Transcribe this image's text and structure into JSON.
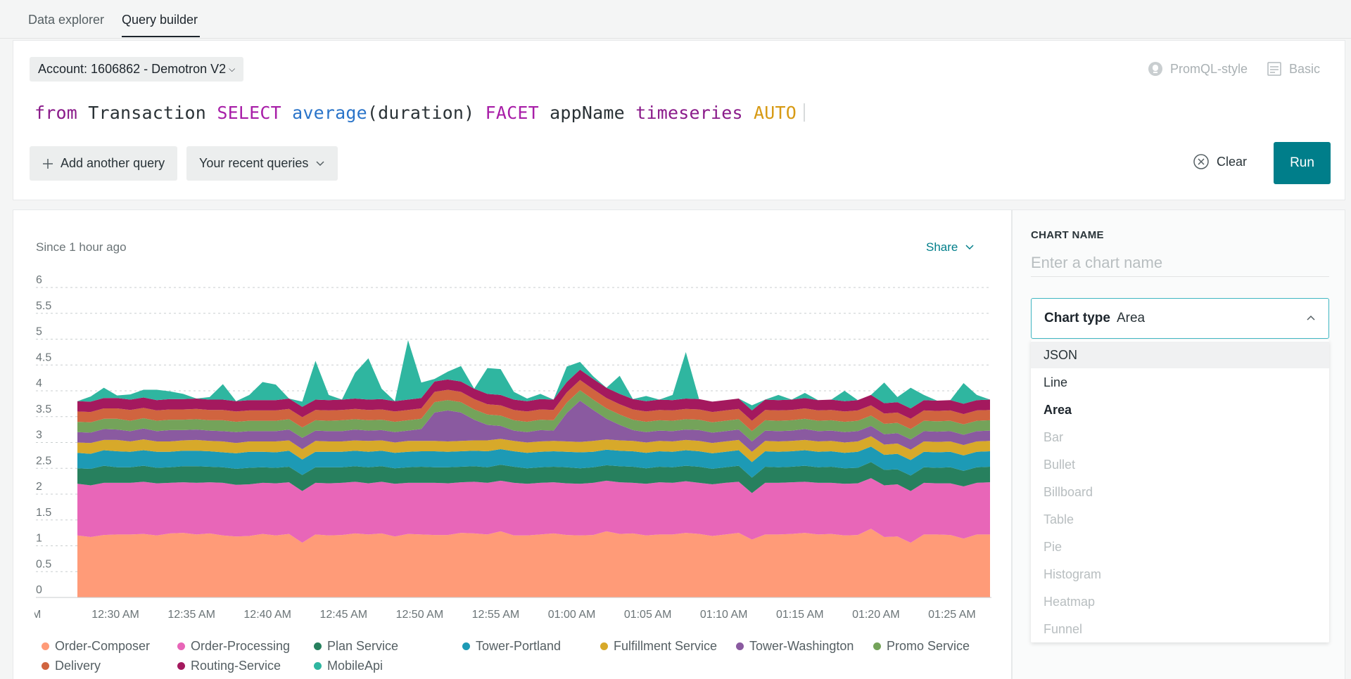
{
  "tabs": [
    {
      "label": "Data explorer",
      "active": false
    },
    {
      "label": "Query builder",
      "active": true
    }
  ],
  "query": {
    "account_label": "Account: 1606862 - Demotron V2",
    "modes": [
      "PromQL-style",
      "Basic"
    ],
    "nrql_tokens": [
      "from",
      "Transaction",
      "SELECT",
      "average",
      "(duration)",
      "FACET",
      "appName",
      "timeseries",
      "AUTO"
    ],
    "add_query_label": "Add another query",
    "recent_label": "Your recent queries",
    "clear_label": "Clear",
    "run_label": "Run"
  },
  "chart": {
    "since_label": "Since 1 hour ago",
    "share_label": "Share"
  },
  "settings": {
    "chart_name_label": "CHART NAME",
    "chart_name_placeholder": "Enter a chart name",
    "chart_type_label": "Chart type",
    "chart_type_value": "Area",
    "options": [
      {
        "label": "JSON",
        "state": "hover"
      },
      {
        "label": "Line",
        "state": "enabled"
      },
      {
        "label": "Area",
        "state": "selected"
      },
      {
        "label": "Bar",
        "state": "disabled"
      },
      {
        "label": "Bullet",
        "state": "disabled"
      },
      {
        "label": "Billboard",
        "state": "disabled"
      },
      {
        "label": "Table",
        "state": "disabled"
      },
      {
        "label": "Pie",
        "state": "disabled"
      },
      {
        "label": "Histogram",
        "state": "disabled"
      },
      {
        "label": "Heatmap",
        "state": "disabled"
      },
      {
        "label": "Funnel",
        "state": "disabled"
      }
    ]
  },
  "chart_data": {
    "type": "area",
    "stacked": true,
    "title": "",
    "subtitle": "Since 1 hour ago",
    "xlabel": "",
    "ylabel": "",
    "ylim": [
      0,
      6
    ],
    "yticks": [
      0,
      0.5,
      1,
      1.5,
      2,
      2.5,
      3,
      3.5,
      4,
      4.5,
      5,
      5.5,
      6
    ],
    "x_tick_labels": [
      "12:30 AM",
      "12:35 AM",
      "12:40 AM",
      "12:45 AM",
      "12:50 AM",
      "12:55 AM",
      "01:00 AM",
      "01:05 AM",
      "01:10 AM",
      "01:15 AM",
      "01:20 AM",
      "01:25 AM"
    ],
    "x_first_minute": 27.5,
    "x_tick_minutes": [
      30,
      35,
      40,
      45,
      50,
      55,
      60,
      65,
      70,
      75,
      80,
      85
    ],
    "grid": "horizontal-dashed",
    "legend_position": "bottom",
    "series": [
      {
        "name": "Order-Composer",
        "color": "#ff9b78",
        "values": [
          1.2,
          1.17,
          1.21,
          1.22,
          1.22,
          1.23,
          1.2,
          1.24,
          1.25,
          1.22,
          1.24,
          1.2,
          1.18,
          1.19,
          1.23,
          1.2,
          1.23,
          1.06,
          1.22,
          1.2,
          1.21,
          1.24,
          1.22,
          1.24,
          1.18,
          1.23,
          1.22,
          1.21,
          1.21,
          1.25,
          1.24,
          1.22,
          1.28,
          1.2,
          1.2,
          1.22,
          1.24,
          1.21,
          1.2,
          1.21,
          1.28,
          1.23,
          1.24,
          1.2,
          1.22,
          1.22,
          1.25,
          1.23,
          1.19,
          1.22,
          1.25,
          1.12,
          1.22,
          1.22,
          1.23,
          1.25,
          1.22,
          1.23,
          1.2,
          1.21,
          1.33,
          1.17,
          1.18,
          1.06,
          1.22,
          1.22,
          1.21,
          1.14,
          1.22,
          1.22
        ]
      },
      {
        "name": "Order-Processing",
        "color": "#e866b8",
        "values": [
          1.0,
          1.0,
          1.01,
          1.0,
          1.0,
          1.01,
          1.01,
          0.98,
          0.98,
          1.0,
          0.99,
          1.02,
          1.0,
          1.0,
          0.99,
          1.01,
          1.0,
          1.0,
          1.0,
          1.01,
          1.01,
          1.0,
          0.99,
          1.0,
          1.02,
          0.99,
          1.0,
          1.01,
          1.0,
          0.98,
          1.0,
          1.0,
          0.98,
          1.02,
          1.0,
          1.0,
          0.99,
          1.0,
          1.0,
          1.01,
          0.98,
          1.0,
          0.98,
          1.0,
          1.01,
          1.0,
          1.0,
          0.99,
          1.0,
          1.0,
          0.99,
          0.9,
          1.0,
          1.0,
          1.0,
          0.99,
          1.0,
          0.99,
          1.0,
          1.0,
          0.98,
          1.0,
          1.01,
          1.0,
          1.0,
          0.99,
          1.0,
          1.01,
          1.0,
          1.01
        ]
      },
      {
        "name": "Plan Service",
        "color": "#27805e",
        "values": [
          0.3,
          0.32,
          0.33,
          0.3,
          0.3,
          0.31,
          0.3,
          0.3,
          0.31,
          0.32,
          0.3,
          0.3,
          0.31,
          0.32,
          0.3,
          0.3,
          0.3,
          0.31,
          0.3,
          0.31,
          0.3,
          0.3,
          0.31,
          0.3,
          0.3,
          0.3,
          0.31,
          0.3,
          0.31,
          0.3,
          0.3,
          0.3,
          0.31,
          0.31,
          0.3,
          0.3,
          0.3,
          0.31,
          0.3,
          0.3,
          0.3,
          0.31,
          0.31,
          0.3,
          0.3,
          0.3,
          0.3,
          0.31,
          0.3,
          0.3,
          0.31,
          0.3,
          0.31,
          0.3,
          0.3,
          0.31,
          0.3,
          0.31,
          0.3,
          0.3,
          0.31,
          0.3,
          0.29,
          0.3,
          0.3,
          0.3,
          0.31,
          0.3,
          0.3,
          0.3
        ]
      },
      {
        "name": "Tower-Portland",
        "color": "#1d9ab5",
        "values": [
          0.3,
          0.29,
          0.3,
          0.31,
          0.3,
          0.3,
          0.31,
          0.3,
          0.3,
          0.3,
          0.3,
          0.29,
          0.3,
          0.31,
          0.3,
          0.3,
          0.31,
          0.3,
          0.3,
          0.3,
          0.3,
          0.3,
          0.3,
          0.3,
          0.3,
          0.3,
          0.3,
          0.31,
          0.3,
          0.3,
          0.3,
          0.31,
          0.3,
          0.3,
          0.3,
          0.3,
          0.3,
          0.3,
          0.31,
          0.3,
          0.3,
          0.3,
          0.3,
          0.3,
          0.3,
          0.3,
          0.3,
          0.3,
          0.3,
          0.3,
          0.3,
          0.3,
          0.3,
          0.3,
          0.3,
          0.3,
          0.3,
          0.3,
          0.3,
          0.31,
          0.3,
          0.29,
          0.3,
          0.3,
          0.3,
          0.3,
          0.3,
          0.3,
          0.3,
          0.3
        ]
      },
      {
        "name": "Fulfillment Service",
        "color": "#d7a92a",
        "values": [
          0.2,
          0.21,
          0.2,
          0.22,
          0.2,
          0.21,
          0.2,
          0.2,
          0.2,
          0.21,
          0.2,
          0.21,
          0.2,
          0.2,
          0.2,
          0.21,
          0.2,
          0.2,
          0.21,
          0.2,
          0.2,
          0.2,
          0.21,
          0.2,
          0.2,
          0.21,
          0.2,
          0.2,
          0.2,
          0.2,
          0.2,
          0.21,
          0.2,
          0.2,
          0.2,
          0.2,
          0.2,
          0.2,
          0.2,
          0.21,
          0.2,
          0.2,
          0.2,
          0.2,
          0.2,
          0.2,
          0.2,
          0.2,
          0.2,
          0.2,
          0.2,
          0.2,
          0.2,
          0.2,
          0.2,
          0.2,
          0.2,
          0.2,
          0.2,
          0.2,
          0.2,
          0.2,
          0.2,
          0.2,
          0.2,
          0.2,
          0.2,
          0.2,
          0.2,
          0.2
        ]
      },
      {
        "name": "Tower-Washington",
        "color": "#8a5aa0",
        "values": [
          0.2,
          0.2,
          0.21,
          0.2,
          0.2,
          0.21,
          0.2,
          0.22,
          0.2,
          0.2,
          0.2,
          0.2,
          0.21,
          0.2,
          0.2,
          0.2,
          0.21,
          0.22,
          0.2,
          0.2,
          0.2,
          0.21,
          0.2,
          0.2,
          0.2,
          0.2,
          0.23,
          0.55,
          0.6,
          0.55,
          0.4,
          0.3,
          0.25,
          0.2,
          0.2,
          0.22,
          0.2,
          0.55,
          0.8,
          0.6,
          0.4,
          0.3,
          0.21,
          0.2,
          0.2,
          0.2,
          0.2,
          0.21,
          0.2,
          0.2,
          0.2,
          0.2,
          0.2,
          0.2,
          0.2,
          0.21,
          0.2,
          0.2,
          0.2,
          0.2,
          0.2,
          0.2,
          0.2,
          0.2,
          0.2,
          0.2,
          0.2,
          0.2,
          0.2,
          0.2
        ]
      },
      {
        "name": "Promo Service",
        "color": "#74a35a",
        "values": [
          0.2,
          0.2,
          0.2,
          0.21,
          0.2,
          0.2,
          0.2,
          0.2,
          0.2,
          0.2,
          0.2,
          0.21,
          0.2,
          0.2,
          0.2,
          0.2,
          0.2,
          0.2,
          0.2,
          0.2,
          0.21,
          0.2,
          0.2,
          0.2,
          0.2,
          0.2,
          0.2,
          0.2,
          0.2,
          0.2,
          0.2,
          0.2,
          0.2,
          0.2,
          0.2,
          0.2,
          0.2,
          0.2,
          0.2,
          0.2,
          0.2,
          0.2,
          0.2,
          0.2,
          0.2,
          0.2,
          0.2,
          0.2,
          0.2,
          0.2,
          0.2,
          0.2,
          0.2,
          0.2,
          0.2,
          0.2,
          0.2,
          0.2,
          0.2,
          0.2,
          0.2,
          0.2,
          0.2,
          0.2,
          0.2,
          0.2,
          0.2,
          0.2,
          0.2,
          0.2
        ]
      },
      {
        "name": "Delivery",
        "color": "#d0643f",
        "values": [
          0.2,
          0.2,
          0.2,
          0.2,
          0.21,
          0.2,
          0.2,
          0.2,
          0.2,
          0.2,
          0.2,
          0.2,
          0.2,
          0.2,
          0.2,
          0.2,
          0.2,
          0.2,
          0.2,
          0.2,
          0.2,
          0.2,
          0.2,
          0.2,
          0.2,
          0.2,
          0.2,
          0.2,
          0.2,
          0.2,
          0.2,
          0.2,
          0.2,
          0.2,
          0.2,
          0.2,
          0.2,
          0.2,
          0.2,
          0.2,
          0.2,
          0.2,
          0.2,
          0.2,
          0.2,
          0.2,
          0.2,
          0.2,
          0.2,
          0.2,
          0.2,
          0.2,
          0.2,
          0.2,
          0.2,
          0.2,
          0.2,
          0.2,
          0.2,
          0.2,
          0.2,
          0.2,
          0.2,
          0.2,
          0.2,
          0.2,
          0.2,
          0.2,
          0.2,
          0.2
        ]
      },
      {
        "name": "Routing-Service",
        "color": "#a4195e",
        "values": [
          0.2,
          0.2,
          0.2,
          0.2,
          0.2,
          0.2,
          0.2,
          0.2,
          0.2,
          0.2,
          0.2,
          0.2,
          0.2,
          0.2,
          0.2,
          0.2,
          0.2,
          0.2,
          0.2,
          0.2,
          0.2,
          0.2,
          0.2,
          0.2,
          0.2,
          0.2,
          0.2,
          0.2,
          0.2,
          0.2,
          0.2,
          0.2,
          0.2,
          0.2,
          0.2,
          0.2,
          0.2,
          0.2,
          0.2,
          0.2,
          0.2,
          0.2,
          0.2,
          0.2,
          0.2,
          0.2,
          0.2,
          0.2,
          0.2,
          0.2,
          0.2,
          0.2,
          0.2,
          0.2,
          0.2,
          0.2,
          0.2,
          0.2,
          0.2,
          0.2,
          0.2,
          0.2,
          0.2,
          0.2,
          0.2,
          0.2,
          0.2,
          0.2,
          0.2,
          0.2
        ]
      },
      {
        "name": "MobileApi",
        "color": "#2fb6a0",
        "values": [
          0,
          0.1,
          0.2,
          0.05,
          0.1,
          0.15,
          0.2,
          0.15,
          0.1,
          0.0,
          0.05,
          0.3,
          0.0,
          0.1,
          0.35,
          0.3,
          0.0,
          0.1,
          0.75,
          0.1,
          0.0,
          0.5,
          0.8,
          0.2,
          0.0,
          1.15,
          0.3,
          0.05,
          0.15,
          0.3,
          0.0,
          0.5,
          0.5,
          0.15,
          0.05,
          0.1,
          0.0,
          0.3,
          0.15,
          0.05,
          0.0,
          0.35,
          0.0,
          0.1,
          0.0,
          0.1,
          0.9,
          0.0,
          0.0,
          0.0,
          0.0,
          0.1,
          0.0,
          0.1,
          0.0,
          0.1,
          0.0,
          0.0,
          0.2,
          0.0,
          0.0,
          0.4,
          0.1,
          0.4,
          0.1,
          0.0,
          0.0,
          0.4,
          0.1,
          0.0
        ]
      }
    ]
  }
}
